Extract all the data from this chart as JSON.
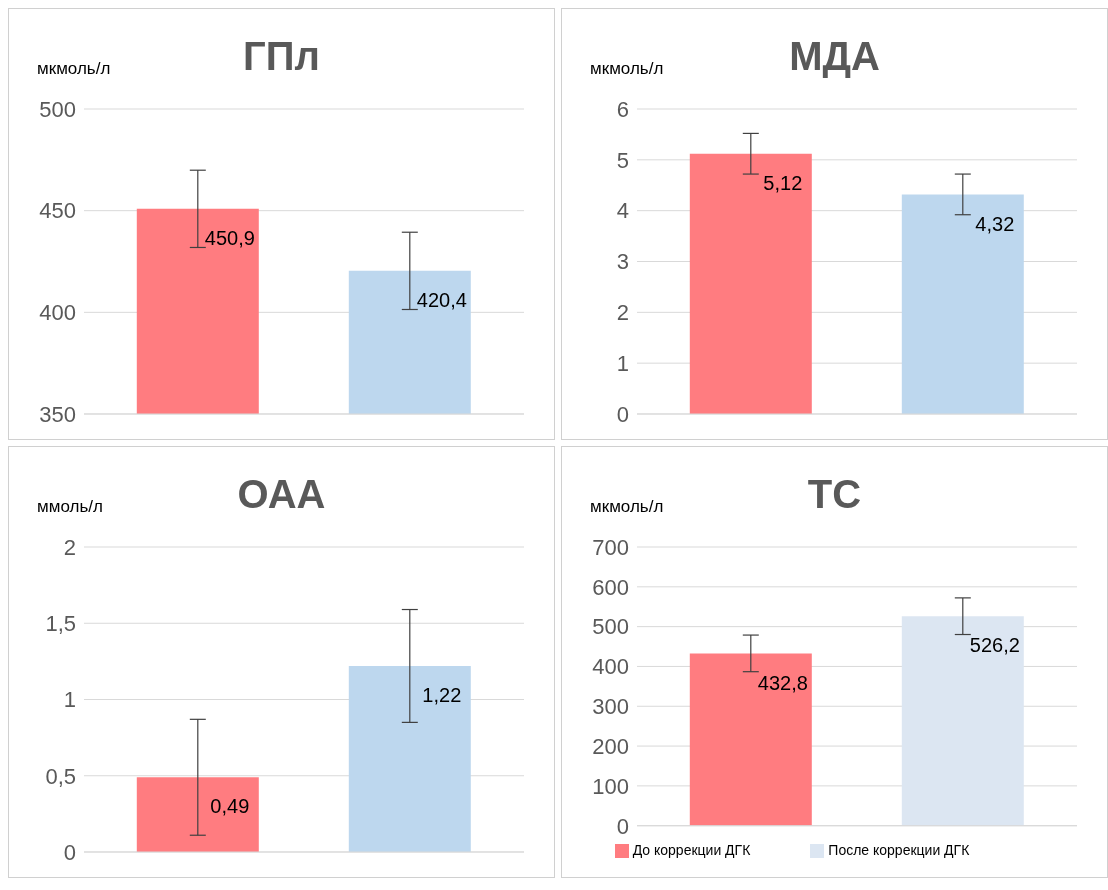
{
  "chart_data": [
    {
      "type": "bar",
      "title": "ГПл",
      "ylabel": "мкмоль/л",
      "categories": [
        null
      ],
      "series": [
        {
          "color": "#ff7c80",
          "values": [
            450.9
          ],
          "errors": [
            19
          ],
          "value_labels": [
            "450,9"
          ]
        },
        {
          "color": "#bdd7ee",
          "values": [
            420.4
          ],
          "errors": [
            19
          ],
          "value_labels": [
            "420,4"
          ]
        }
      ],
      "ylim": [
        350,
        500
      ],
      "yticks": [
        350,
        400,
        450,
        500
      ],
      "grid": "y",
      "legend": false
    },
    {
      "type": "bar",
      "title": "МДА",
      "ylabel": "мкмоль/л",
      "categories": [
        null
      ],
      "series": [
        {
          "color": "#ff7c80",
          "values": [
            5.12
          ],
          "errors": [
            0.4
          ],
          "value_labels": [
            "5,12"
          ]
        },
        {
          "color": "#bdd7ee",
          "values": [
            4.32
          ],
          "errors": [
            0.4
          ],
          "value_labels": [
            "4,32"
          ]
        }
      ],
      "ylim": [
        0,
        6
      ],
      "yticks": [
        0,
        1,
        2,
        3,
        4,
        5,
        6
      ],
      "grid": "y",
      "legend": false
    },
    {
      "type": "bar",
      "title": "ОАА",
      "ylabel": "ммоль/л",
      "categories": [
        null
      ],
      "series": [
        {
          "color": "#ff7c80",
          "values": [
            0.49
          ],
          "errors": [
            0.38
          ],
          "value_labels": [
            "0,49"
          ]
        },
        {
          "color": "#bdd7ee",
          "values": [
            1.22
          ],
          "errors": [
            0.37
          ],
          "value_labels": [
            "1,22"
          ]
        }
      ],
      "ylim": [
        0,
        2
      ],
      "yticks": [
        0,
        {
          "value": 0.5,
          "label": "0,5"
        },
        1,
        {
          "value": 1.5,
          "label": "1,5"
        },
        2
      ],
      "grid": "y",
      "legend": false
    },
    {
      "type": "bar",
      "title": "ТС",
      "ylabel": "мкмоль/л",
      "categories": [
        null
      ],
      "series": [
        {
          "name": "До коррекции ДГК",
          "color": "#ff7c80",
          "values": [
            432.8
          ],
          "errors": [
            46
          ],
          "value_labels": [
            "432,8"
          ]
        },
        {
          "name": "После коррекции ДГК",
          "color": "#dce6f2",
          "values": [
            526.2
          ],
          "errors": [
            46
          ],
          "value_labels": [
            "526,2"
          ]
        }
      ],
      "ylim": [
        0,
        700
      ],
      "yticks": [
        0,
        100,
        200,
        300,
        400,
        500,
        600,
        700
      ],
      "grid": "y",
      "legend": "bottom"
    }
  ]
}
